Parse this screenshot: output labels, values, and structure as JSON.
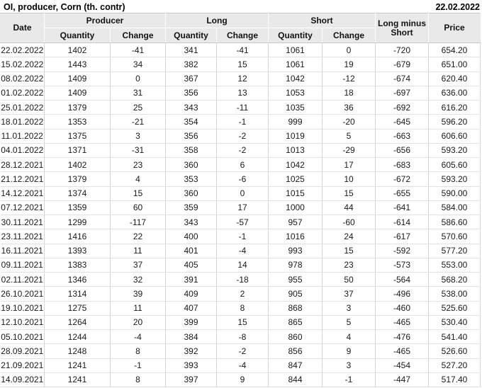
{
  "header": {
    "title": "OI, producer, Corn (th. contr)",
    "date": "22.02.2022"
  },
  "table": {
    "columns": {
      "date": "Date",
      "producer": "Producer",
      "long": "Long",
      "short": "Short",
      "quantity": "Quantity",
      "change": "Change",
      "long_minus_short": "Long minus Short",
      "price": "Price"
    },
    "colors": {
      "positive": "#27a127",
      "negative": "#d93a3a",
      "neutral": "#1a1a1a",
      "header_bg": "#e9e9e9",
      "grid": "#d6d6d6"
    },
    "rows": [
      {
        "date": "22.02.2022",
        "producer_qty": "1402",
        "producer_chg": "-41",
        "producer_chg_color": "neg",
        "long_qty": "341",
        "long_chg": "-41",
        "long_chg_color": "neg",
        "short_qty": "1061",
        "short_chg": "0",
        "short_chg_color": "neutral",
        "long_minus_short": "-720",
        "price": "654.20"
      },
      {
        "date": "15.02.2022",
        "producer_qty": "1443",
        "producer_chg": "34",
        "producer_chg_color": "pos",
        "long_qty": "382",
        "long_chg": "15",
        "long_chg_color": "pos",
        "short_qty": "1061",
        "short_chg": "19",
        "short_chg_color": "pos",
        "long_minus_short": "-679",
        "price": "651.00"
      },
      {
        "date": "08.02.2022",
        "producer_qty": "1409",
        "producer_chg": "0",
        "producer_chg_color": "neg",
        "long_qty": "367",
        "long_chg": "12",
        "long_chg_color": "pos",
        "short_qty": "1042",
        "short_chg": "-12",
        "short_chg_color": "neg",
        "long_minus_short": "-674",
        "price": "620.40"
      },
      {
        "date": "01.02.2022",
        "producer_qty": "1409",
        "producer_chg": "31",
        "producer_chg_color": "pos",
        "long_qty": "356",
        "long_chg": "13",
        "long_chg_color": "pos",
        "short_qty": "1053",
        "short_chg": "18",
        "short_chg_color": "pos",
        "long_minus_short": "-697",
        "price": "636.00"
      },
      {
        "date": "25.01.2022",
        "producer_qty": "1379",
        "producer_chg": "25",
        "producer_chg_color": "pos",
        "long_qty": "343",
        "long_chg": "-11",
        "long_chg_color": "neg",
        "short_qty": "1035",
        "short_chg": "36",
        "short_chg_color": "pos",
        "long_minus_short": "-692",
        "price": "616.20"
      },
      {
        "date": "18.01.2022",
        "producer_qty": "1353",
        "producer_chg": "-21",
        "producer_chg_color": "neg",
        "long_qty": "354",
        "long_chg": "-1",
        "long_chg_color": "neg",
        "short_qty": "999",
        "short_chg": "-20",
        "short_chg_color": "neg",
        "long_minus_short": "-645",
        "price": "596.20"
      },
      {
        "date": "11.01.2022",
        "producer_qty": "1375",
        "producer_chg": "3",
        "producer_chg_color": "pos",
        "long_qty": "356",
        "long_chg": "-2",
        "long_chg_color": "neg",
        "short_qty": "1019",
        "short_chg": "5",
        "short_chg_color": "pos",
        "long_minus_short": "-663",
        "price": "606.60"
      },
      {
        "date": "04.01.2022",
        "producer_qty": "1371",
        "producer_chg": "-31",
        "producer_chg_color": "neg",
        "long_qty": "358",
        "long_chg": "-2",
        "long_chg_color": "neg",
        "short_qty": "1013",
        "short_chg": "-29",
        "short_chg_color": "neg",
        "long_minus_short": "-656",
        "price": "593.20"
      },
      {
        "date": "28.12.2021",
        "producer_qty": "1402",
        "producer_chg": "23",
        "producer_chg_color": "pos",
        "long_qty": "360",
        "long_chg": "6",
        "long_chg_color": "pos",
        "short_qty": "1042",
        "short_chg": "17",
        "short_chg_color": "pos",
        "long_minus_short": "-683",
        "price": "605.60"
      },
      {
        "date": "21.12.2021",
        "producer_qty": "1379",
        "producer_chg": "4",
        "producer_chg_color": "pos",
        "long_qty": "353",
        "long_chg": "-6",
        "long_chg_color": "neg",
        "short_qty": "1025",
        "short_chg": "10",
        "short_chg_color": "pos",
        "long_minus_short": "-672",
        "price": "593.20"
      },
      {
        "date": "14.12.2021",
        "producer_qty": "1374",
        "producer_chg": "15",
        "producer_chg_color": "pos",
        "long_qty": "360",
        "long_chg": "0",
        "long_chg_color": "pos",
        "short_qty": "1015",
        "short_chg": "15",
        "short_chg_color": "pos",
        "long_minus_short": "-655",
        "price": "590.00"
      },
      {
        "date": "07.12.2021",
        "producer_qty": "1359",
        "producer_chg": "60",
        "producer_chg_color": "pos",
        "long_qty": "359",
        "long_chg": "17",
        "long_chg_color": "pos",
        "short_qty": "1000",
        "short_chg": "44",
        "short_chg_color": "pos",
        "long_minus_short": "-641",
        "price": "584.00"
      },
      {
        "date": "30.11.2021",
        "producer_qty": "1299",
        "producer_chg": "-117",
        "producer_chg_color": "neg",
        "long_qty": "343",
        "long_chg": "-57",
        "long_chg_color": "neg",
        "short_qty": "957",
        "short_chg": "-60",
        "short_chg_color": "neg",
        "long_minus_short": "-614",
        "price": "586.60"
      },
      {
        "date": "23.11.2021",
        "producer_qty": "1416",
        "producer_chg": "22",
        "producer_chg_color": "pos",
        "long_qty": "400",
        "long_chg": "-1",
        "long_chg_color": "neg",
        "short_qty": "1016",
        "short_chg": "24",
        "short_chg_color": "pos",
        "long_minus_short": "-617",
        "price": "570.60"
      },
      {
        "date": "16.11.2021",
        "producer_qty": "1393",
        "producer_chg": "11",
        "producer_chg_color": "pos",
        "long_qty": "401",
        "long_chg": "-4",
        "long_chg_color": "neg",
        "short_qty": "993",
        "short_chg": "15",
        "short_chg_color": "pos",
        "long_minus_short": "-592",
        "price": "577.20"
      },
      {
        "date": "09.11.2021",
        "producer_qty": "1383",
        "producer_chg": "37",
        "producer_chg_color": "pos",
        "long_qty": "405",
        "long_chg": "14",
        "long_chg_color": "pos",
        "short_qty": "978",
        "short_chg": "23",
        "short_chg_color": "pos",
        "long_minus_short": "-573",
        "price": "553.00"
      },
      {
        "date": "02.11.2021",
        "producer_qty": "1346",
        "producer_chg": "32",
        "producer_chg_color": "pos",
        "long_qty": "391",
        "long_chg": "-18",
        "long_chg_color": "neg",
        "short_qty": "955",
        "short_chg": "50",
        "short_chg_color": "pos",
        "long_minus_short": "-564",
        "price": "568.20"
      },
      {
        "date": "26.10.2021",
        "producer_qty": "1314",
        "producer_chg": "39",
        "producer_chg_color": "pos",
        "long_qty": "409",
        "long_chg": "2",
        "long_chg_color": "pos",
        "short_qty": "905",
        "short_chg": "37",
        "short_chg_color": "pos",
        "long_minus_short": "-496",
        "price": "538.00"
      },
      {
        "date": "19.10.2021",
        "producer_qty": "1275",
        "producer_chg": "11",
        "producer_chg_color": "pos",
        "long_qty": "407",
        "long_chg": "8",
        "long_chg_color": "pos",
        "short_qty": "868",
        "short_chg": "3",
        "short_chg_color": "pos",
        "long_minus_short": "-460",
        "price": "525.60"
      },
      {
        "date": "12.10.2021",
        "producer_qty": "1264",
        "producer_chg": "20",
        "producer_chg_color": "pos",
        "long_qty": "399",
        "long_chg": "15",
        "long_chg_color": "pos",
        "short_qty": "865",
        "short_chg": "5",
        "short_chg_color": "pos",
        "long_minus_short": "-465",
        "price": "530.40"
      },
      {
        "date": "05.10.2021",
        "producer_qty": "1244",
        "producer_chg": "-4",
        "producer_chg_color": "neg",
        "long_qty": "384",
        "long_chg": "-8",
        "long_chg_color": "neg",
        "short_qty": "860",
        "short_chg": "4",
        "short_chg_color": "pos",
        "long_minus_short": "-476",
        "price": "541.40"
      },
      {
        "date": "28.09.2021",
        "producer_qty": "1248",
        "producer_chg": "8",
        "producer_chg_color": "pos",
        "long_qty": "392",
        "long_chg": "-2",
        "long_chg_color": "neg",
        "short_qty": "856",
        "short_chg": "9",
        "short_chg_color": "pos",
        "long_minus_short": "-465",
        "price": "526.60"
      },
      {
        "date": "21.09.2021",
        "producer_qty": "1241",
        "producer_chg": "-1",
        "producer_chg_color": "neg",
        "long_qty": "393",
        "long_chg": "-4",
        "long_chg_color": "neg",
        "short_qty": "847",
        "short_chg": "3",
        "short_chg_color": "pos",
        "long_minus_short": "-454",
        "price": "527.20"
      },
      {
        "date": "14.09.2021",
        "producer_qty": "1241",
        "producer_chg": "8",
        "producer_chg_color": "pos",
        "long_qty": "397",
        "long_chg": "9",
        "long_chg_color": "pos",
        "short_qty": "844",
        "short_chg": "-1",
        "short_chg_color": "neg",
        "long_minus_short": "-447",
        "price": "517.40"
      }
    ]
  }
}
